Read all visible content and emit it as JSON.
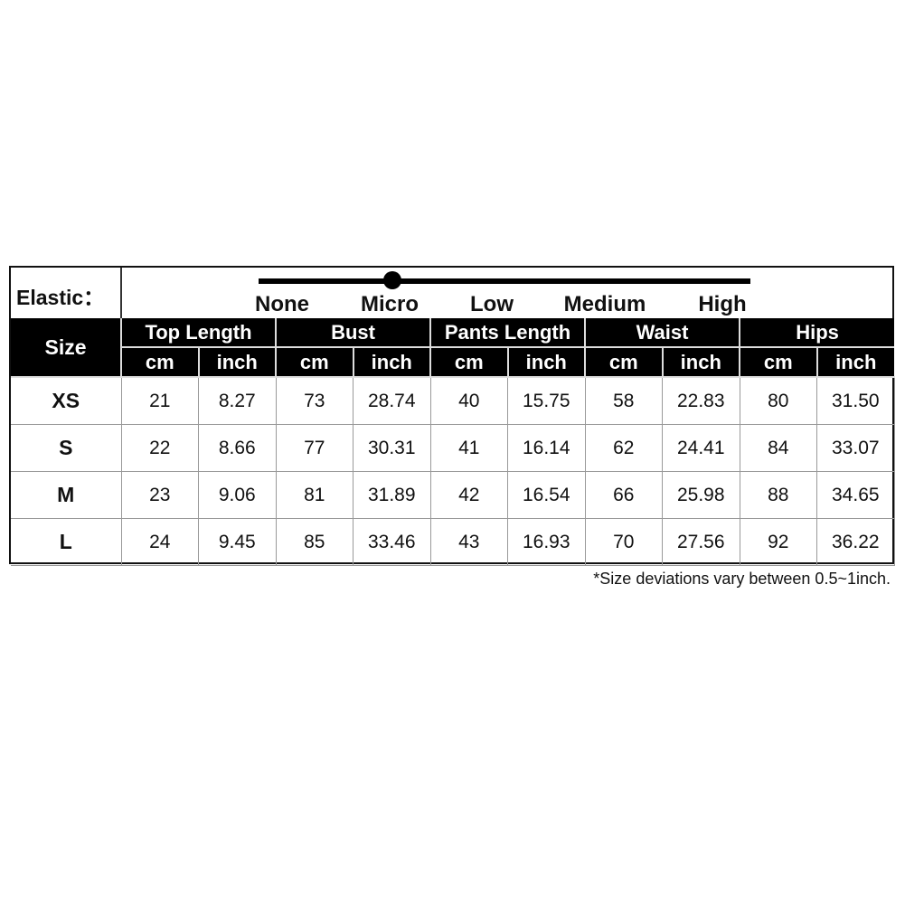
{
  "elastic": {
    "label": "Elastic：",
    "levels": [
      "None",
      "Micro",
      "Low",
      "Medium",
      "High"
    ],
    "selected": "Micro"
  },
  "table": {
    "size_header": "Size",
    "groups": [
      "Top Length",
      "Bust",
      "Pants Length",
      "Waist",
      "Hips"
    ],
    "units": [
      "cm",
      "inch"
    ],
    "rows": [
      {
        "size": "XS",
        "values": [
          "21",
          "8.27",
          "73",
          "28.74",
          "40",
          "15.75",
          "58",
          "22.83",
          "80",
          "31.50"
        ]
      },
      {
        "size": "S",
        "values": [
          "22",
          "8.66",
          "77",
          "30.31",
          "41",
          "16.14",
          "62",
          "24.41",
          "84",
          "33.07"
        ]
      },
      {
        "size": "M",
        "values": [
          "23",
          "9.06",
          "81",
          "31.89",
          "42",
          "16.54",
          "66",
          "25.98",
          "88",
          "34.65"
        ]
      },
      {
        "size": "L",
        "values": [
          "24",
          "9.45",
          "85",
          "33.46",
          "43",
          "16.93",
          "70",
          "27.56",
          "92",
          "36.22"
        ]
      }
    ]
  },
  "note": "*Size deviations vary between 0.5~1inch."
}
